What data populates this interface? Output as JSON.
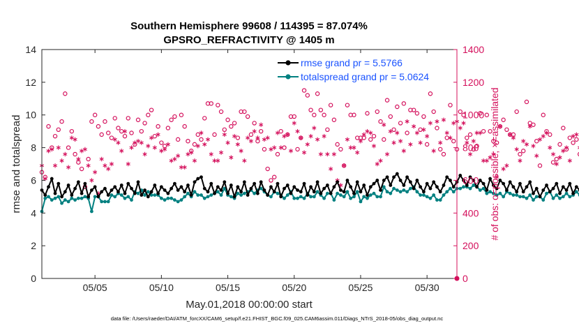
{
  "chart_data": {
    "type": "line",
    "title": "Southern Hemisphere 99608 / 114395 = 87.074%",
    "subtitle": "GPSRO_REFRACTIVITY @ 1405 m",
    "xlabel": "May.01,2018 00:00:00 start",
    "ylabel": "rmse and totalspread",
    "ylabel_right": "# of obs: o=possible; ×=assimilated",
    "footer": "data file: /Users/raeder/DAI/ATM_forcXX/CAM6_setup/f.e21.FHIST_BGC.f09_025.CAM6assim.011/Diags_NTrS_2018-05/obs_diag_output.nc",
    "xlim": [
      1.0,
      32.25
    ],
    "ylim": [
      0,
      14
    ],
    "ylim_right": [
      0,
      1400
    ],
    "x_ticks": [
      5,
      10,
      15,
      20,
      25,
      30
    ],
    "x_tick_labels": [
      "05/05",
      "05/10",
      "05/15",
      "05/20",
      "05/25",
      "05/30"
    ],
    "y_ticks": [
      0,
      2,
      4,
      6,
      8,
      10,
      12,
      14
    ],
    "y_tick_labels": [
      "0",
      "2",
      "4",
      "6",
      "8",
      "10",
      "12",
      "14"
    ],
    "y_right_ticks": [
      0,
      200,
      400,
      600,
      800,
      1000,
      1200,
      1400
    ],
    "y_right_tick_labels": [
      "0",
      "200",
      "400",
      "600",
      "800",
      "1000",
      "1200",
      "1400"
    ],
    "x_start": 1.0,
    "x_step": 0.25,
    "legend": {
      "position": "top-right",
      "entries": [
        "rmse grand pr = 5.5766",
        "totalspread grand pr = 5.0624"
      ]
    },
    "colors": {
      "rmse": "#000000",
      "totalspread": "#008080",
      "obs": "#d40f5b",
      "legend_text": "#1a53ff"
    },
    "series": [
      {
        "name": "rmse grand pr = 5.5766",
        "axis": "left",
        "values": [
          5.4,
          5.1,
          5.6,
          6.1,
          5.2,
          5.8,
          5.0,
          5.3,
          5.7,
          5.1,
          5.5,
          5.9,
          5.2,
          5.8,
          5.0,
          5.4,
          5.6,
          5.0,
          5.3,
          5.5,
          5.1,
          5.4,
          5.6,
          5.3,
          5.7,
          5.2,
          5.8,
          5.5,
          5.2,
          5.9,
          5.1,
          5.4,
          5.0,
          5.3,
          5.7,
          5.2,
          5.6,
          5.4,
          5.2,
          5.5,
          5.8,
          5.4,
          5.6,
          5.3,
          5.7,
          5.1,
          5.9,
          6.1,
          6.2,
          5.5,
          5.3,
          5.8,
          5.2,
          5.6,
          5.4,
          5.9,
          5.2,
          5.7,
          5.0,
          5.6,
          5.3,
          5.9,
          5.1,
          5.5,
          5.8,
          5.2,
          5.9,
          5.4,
          5.1,
          5.6,
          5.3,
          5.8,
          5.0,
          5.5,
          5.7,
          5.2,
          5.6,
          5.4,
          5.3,
          5.8,
          5.1,
          5.6,
          5.3,
          5.9,
          5.2,
          5.5,
          5.7,
          5.2,
          5.6,
          5.9,
          5.4,
          5.3,
          6.0,
          5.6,
          5.2,
          5.9,
          5.3,
          5.7,
          5.1,
          5.6,
          5.8,
          6.0,
          5.4,
          6.0,
          6.2,
          5.7,
          6.2,
          6.4,
          6.0,
          5.7,
          6.2,
          5.9,
          5.5,
          6.0,
          5.6,
          5.3,
          5.8,
          5.5,
          5.9,
          5.6,
          5.3,
          5.7,
          6.2,
          6.0,
          5.6,
          5.9,
          6.3,
          6.0,
          5.7,
          6.2,
          6.0,
          5.6,
          6.0,
          5.8,
          5.4,
          6.1,
          5.7,
          5.5,
          6.0,
          5.8,
          5.4,
          5.9,
          5.6,
          5.3,
          5.8,
          5.3,
          5.6,
          5.9,
          5.2,
          5.5,
          5.0,
          5.4,
          5.7,
          5.3,
          5.5,
          5.8,
          5.2,
          5.6,
          5.4,
          5.8,
          5.2,
          5.6,
          5.4,
          5.9,
          5.3,
          5.7,
          5.5,
          5.2,
          5.7,
          5.3,
          5.6,
          5.4,
          5.9,
          5.3,
          5.7,
          5.5,
          5.2,
          5.6,
          5.9,
          5.4,
          5.6,
          6.1,
          5.6,
          5.4,
          5.9,
          6.4,
          5.6,
          6.2,
          5.7,
          6.0,
          6.6,
          6.4
        ]
      },
      {
        "name": "totalspread grand pr = 5.0624",
        "axis": "left",
        "values": [
          4.1,
          4.9,
          5.0,
          4.8,
          4.9,
          5.0,
          4.6,
          4.8,
          4.7,
          4.9,
          4.8,
          4.9,
          4.9,
          5.0,
          4.9,
          4.1,
          5.0,
          5.0,
          4.7,
          4.7,
          4.7,
          5.1,
          5.0,
          5.2,
          5.1,
          4.9,
          5.0,
          4.8,
          5.3,
          5.2,
          5.4,
          5.1,
          5.3,
          5.1,
          5.1,
          5.1,
          4.9,
          4.8,
          4.9,
          4.9,
          4.8,
          4.7,
          4.8,
          5.0,
          5.2,
          5.0,
          5.3,
          5.1,
          5.1,
          4.9,
          5.0,
          5.1,
          5.2,
          5.3,
          5.1,
          5.5,
          5.1,
          5.0,
          4.9,
          5.2,
          5.1,
          5.2,
          5.3,
          5.4,
          5.2,
          5.4,
          5.5,
          5.3,
          5.1,
          5.0,
          5.3,
          5.2,
          5.1,
          4.9,
          5.1,
          5.3,
          4.9,
          4.9,
          5.0,
          4.9,
          5.2,
          5.0,
          5.0,
          5.3,
          5.1,
          4.9,
          5.2,
          5.2,
          4.8,
          5.2,
          5.1,
          5.0,
          5.3,
          4.9,
          5.0,
          5.3,
          4.7,
          5.0,
          4.9,
          5.1,
          5.2,
          5.0,
          5.0,
          5.6,
          5.3,
          5.2,
          5.5,
          5.4,
          5.3,
          5.4,
          5.3,
          5.5,
          5.6,
          5.3,
          5.1,
          5.1,
          5.0,
          4.9,
          5.1,
          4.8,
          4.8,
          5.1,
          5.3,
          5.5,
          5.3,
          5.5,
          5.5,
          5.6,
          5.6,
          5.5,
          5.7,
          5.6,
          5.4,
          5.5,
          5.2,
          5.3,
          5.2,
          5.1,
          5.2,
          5.0,
          5.3,
          5.2,
          5.1,
          5.1,
          5.0,
          5.0,
          4.9,
          5.1,
          4.8,
          5.0,
          5.0,
          4.8,
          5.2,
          5.3,
          4.9,
          5.1,
          4.9,
          5.0,
          5.2,
          5.0,
          5.1,
          5.3,
          5.1,
          5.2,
          5.0,
          5.2,
          5.2,
          5.0,
          5.0,
          5.0,
          5.1,
          5.0,
          5.2,
          5.0,
          5.0,
          5.2,
          5.2,
          5.3,
          5.1,
          5.1,
          5.1,
          5.3,
          5.4,
          5.0,
          5.5,
          5.3,
          5.4,
          5.2,
          5.4,
          5.5,
          5.6,
          5.6
        ]
      },
      {
        "name": "possible obs count (o)",
        "axis": "right",
        "marker": "o",
        "values": [
          650,
          620,
          930,
          800,
          870,
          910,
          960,
          1130,
          800,
          900,
          760,
          710,
          670,
          560,
          730,
          960,
          1000,
          930,
          880,
          960,
          890,
          860,
          980,
          920,
          900,
          870,
          980,
          890,
          820,
          970,
          900,
          950,
          1000,
          1030,
          870,
          930,
          830,
          810,
          920,
          970,
          990,
          850,
          1000,
          930,
          840,
          780,
          820,
          880,
          850,
          980,
          1070,
          1070,
          880,
          1060,
          1020,
          910,
          970,
          930,
          950,
          860,
          1020,
          1020,
          990,
          880,
          950,
          840,
          900,
          790,
          670,
          600,
          620,
          760,
          900,
          800,
          880,
          990,
          990,
          790,
          860,
          1150,
          1120,
          1030,
          1000,
          1130,
          1030,
          1000,
          910,
          1060,
          970,
          820,
          790,
          690,
          1060,
          1000,
          1000,
          860,
          860,
          860,
          1010,
          850,
          870,
          1020,
          960,
          850,
          1090,
          990,
          910,
          1050,
          950,
          1070,
          890,
          1030,
          1030,
          1010,
          910,
          990,
          820,
          1130,
          1020,
          920,
          790,
          760,
          860,
          1060,
          840,
          790,
          1020,
          1000,
          860,
          880,
          790,
          810,
          1010,
          900,
          1000,
          900,
          840,
          830,
          930,
          970,
          910,
          880,
          880,
          1020,
          760,
          780,
          1080,
          950,
          940,
          840,
          690,
          1000,
          900,
          880,
          710,
          730,
          820,
          920,
          790,
          860,
          830,
          850,
          760,
          800,
          760,
          660,
          750,
          650,
          590,
          910,
          840,
          780,
          810,
          920,
          950,
          790,
          790,
          690,
          580,
          630,
          1000,
          1080,
          960,
          870,
          790,
          1050,
          1000,
          960,
          730,
          690,
          720,
          830,
          820,
          860,
          740,
          880,
          810,
          760,
          780,
          650,
          590,
          590,
          930,
          800,
          650,
          800,
          660,
          630,
          620
        ]
      },
      {
        "name": "assimilated obs count (×)",
        "axis": "right",
        "marker": "*",
        "values": [
          690,
          610,
          780,
          790,
          690,
          800,
          720,
          760,
          680,
          860,
          850,
          730,
          780,
          790,
          690,
          600,
          650,
          520,
          730,
          690,
          670,
          700,
          850,
          830,
          780,
          900,
          700,
          800,
          830,
          840,
          830,
          760,
          810,
          860,
          800,
          880,
          780,
          790,
          820,
          720,
          730,
          750,
          680,
          680,
          760,
          770,
          720,
          810,
          890,
          820,
          850,
          760,
          720,
          720,
          770,
          880,
          830,
          740,
          870,
          820,
          780,
          720,
          860,
          840,
          900,
          860,
          940,
          850,
          860,
          790,
          800,
          890,
          800,
          870,
          880,
          780,
          950,
          900,
          860,
          770,
          820,
          870,
          920,
          850,
          760,
          870,
          760,
          670,
          760,
          600,
          570,
          690,
          850,
          800,
          800,
          770,
          840,
          880,
          900,
          890,
          810,
          700,
          720,
          940,
          760,
          900,
          830,
          890,
          840,
          780,
          960,
          820,
          930,
          890,
          830,
          910,
          870,
          950,
          780,
          960,
          830,
          970,
          890,
          860,
          950,
          960,
          920,
          950,
          830,
          760,
          840,
          890,
          890,
          720,
          720,
          740,
          760,
          620,
          930,
          670,
          690,
          880,
          860,
          790,
          720,
          840,
          820,
          930,
          810,
          750,
          850,
          870,
          890,
          800,
          760,
          700,
          740,
          780,
          800,
          720,
          870,
          880,
          800,
          930,
          880,
          860,
          860,
          850,
          860,
          800,
          770,
          830,
          790,
          700,
          780,
          870,
          800,
          810,
          720,
          740,
          760,
          650,
          630,
          760,
          760,
          810,
          870,
          790,
          820,
          720,
          700,
          650,
          660,
          650
        ]
      }
    ]
  }
}
